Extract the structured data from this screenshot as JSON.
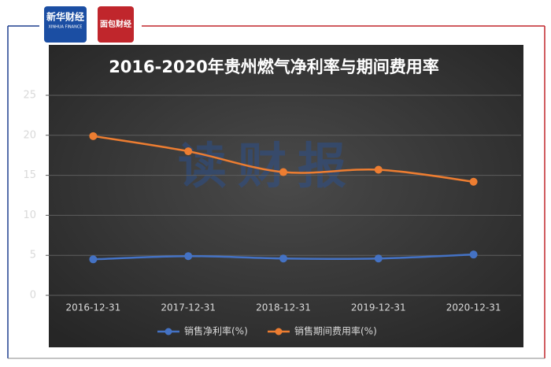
{
  "header": {
    "logo_left": "新华财经",
    "logo_left_sub": "XINHUA FINANCE",
    "logo_right": "面包财经",
    "watermark": "读财报"
  },
  "chart_data": {
    "type": "line",
    "title": "2016-2020年贵州燃气净利率与期间费用率",
    "categories": [
      "2016-12-31",
      "2017-12-31",
      "2018-12-31",
      "2019-12-31",
      "2020-12-31"
    ],
    "series": [
      {
        "name": "销售净利率(%)",
        "color": "#4472c4",
        "values": [
          4.5,
          4.9,
          4.6,
          4.6,
          5.1
        ]
      },
      {
        "name": "销售期间费用率(%)",
        "color": "#ed7d31",
        "values": [
          19.9,
          18.0,
          15.4,
          15.7,
          14.2
        ]
      }
    ],
    "ylim": [
      0,
      25
    ],
    "yticks": [
      0,
      5,
      10,
      15,
      20,
      25
    ],
    "grid": true,
    "legend": "bottom"
  }
}
